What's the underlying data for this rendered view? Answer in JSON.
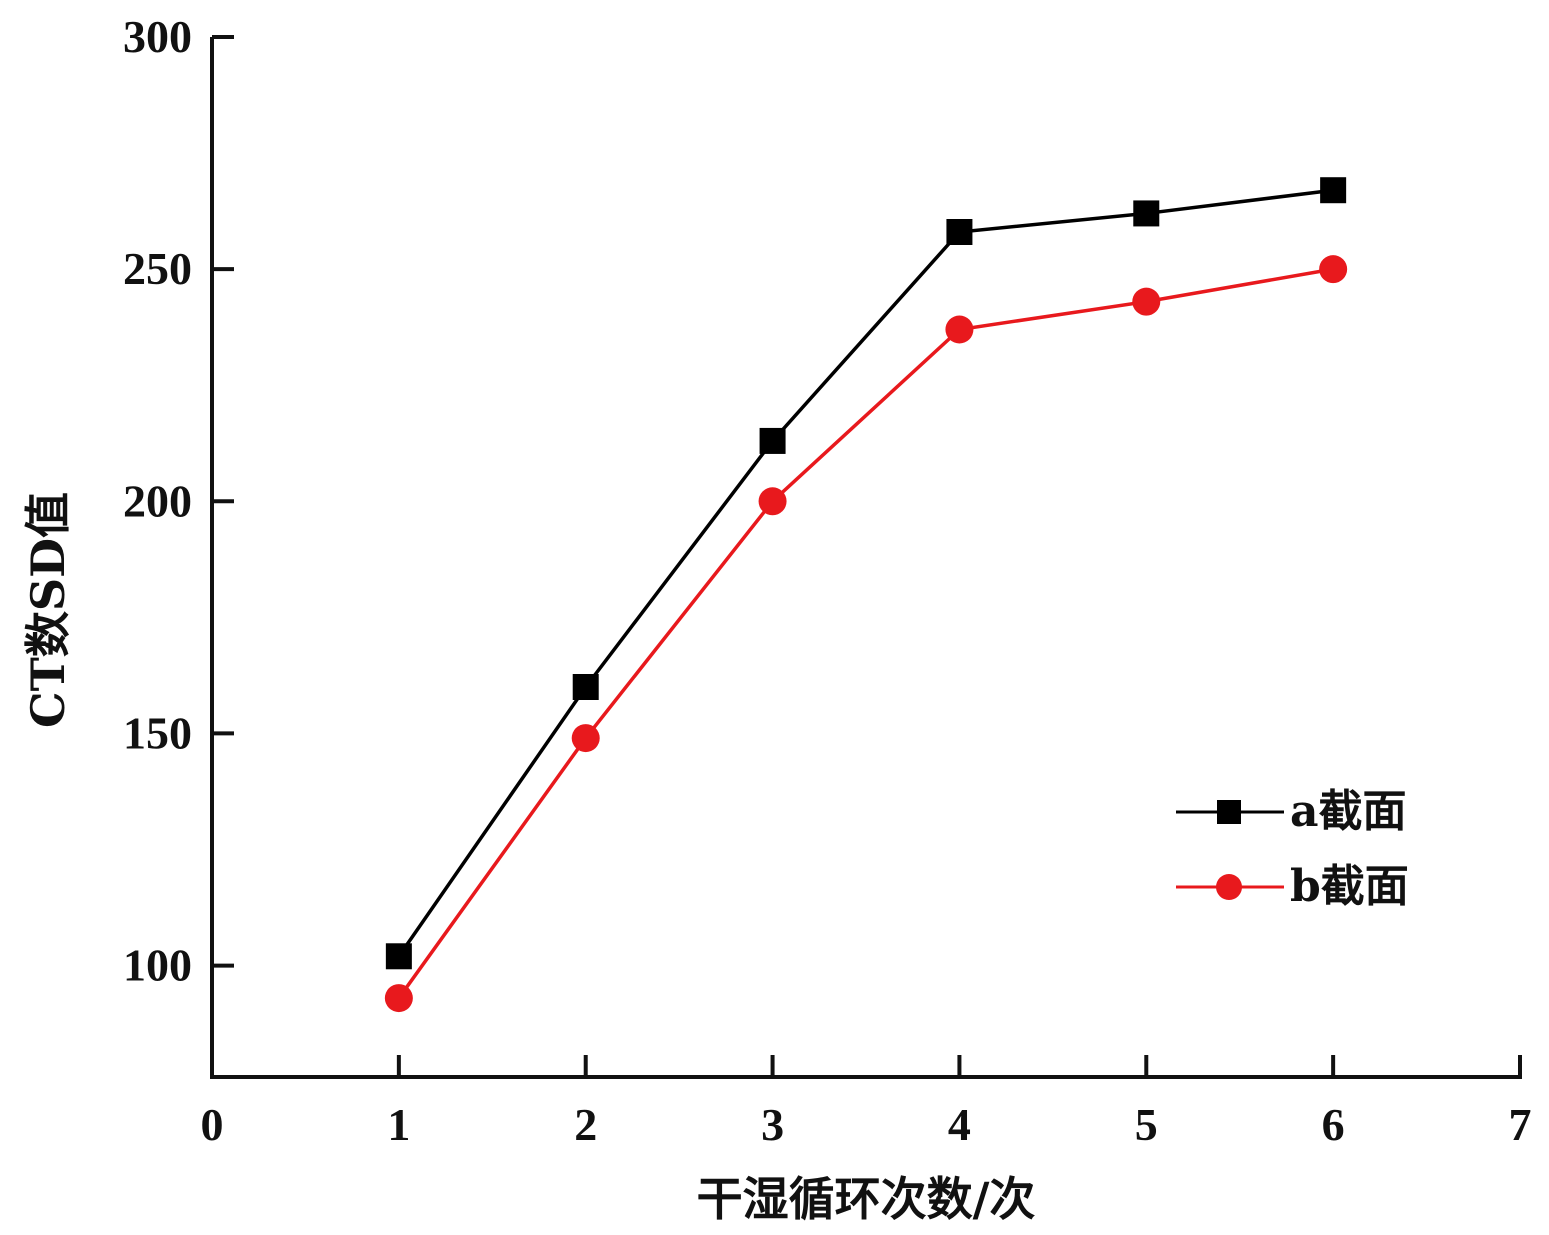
{
  "chart_data": {
    "type": "line",
    "xlabel": "干湿循环次数/次",
    "ylabel": "CT数SD值",
    "xlim": [
      0,
      7
    ],
    "ylim": [
      76,
      300
    ],
    "x_ticks": [
      0,
      1,
      2,
      3,
      4,
      5,
      6,
      7
    ],
    "y_ticks": [
      100,
      150,
      200,
      250,
      300
    ],
    "x_tick_labels": [
      "0",
      "1",
      "2",
      "3",
      "4",
      "5",
      "6",
      "7"
    ],
    "y_tick_labels": [
      "100",
      "150",
      "200",
      "250",
      "300"
    ],
    "x": [
      1,
      2,
      3,
      4,
      5,
      6
    ],
    "series": [
      {
        "name": "a截面",
        "values": [
          102,
          160,
          213,
          258,
          262,
          267
        ],
        "color": "#000000",
        "marker": "square"
      },
      {
        "name": "b截面",
        "values": [
          93,
          149,
          200,
          237,
          243,
          250
        ],
        "color": "#e8191d",
        "marker": "circle"
      }
    ],
    "grid": false,
    "legend_position": "right-middle"
  }
}
